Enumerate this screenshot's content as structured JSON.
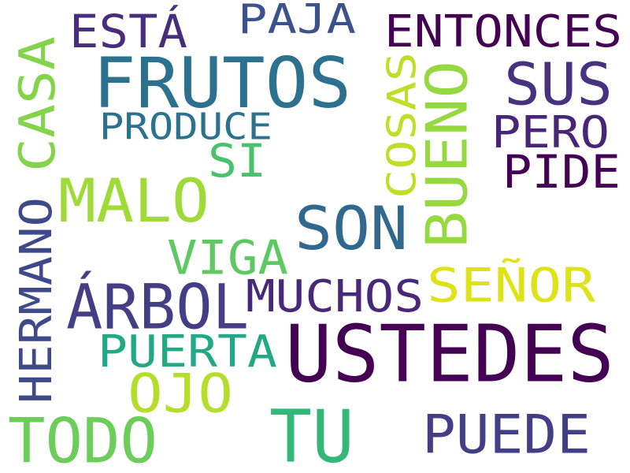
{
  "words": [
    {
      "text": "ESTÁ",
      "color": "#472d7b"
    },
    {
      "text": "PAJA",
      "color": "#3b528b"
    },
    {
      "text": "ENTONCES",
      "color": "#440154"
    },
    {
      "text": "FRUTOS",
      "color": "#2c728e"
    },
    {
      "text": "SUS",
      "color": "#46327e"
    },
    {
      "text": "CASA",
      "color": "#84d44b"
    },
    {
      "text": "COSAS",
      "color": "#bddf26"
    },
    {
      "text": "BUENO",
      "color": "#95d840"
    },
    {
      "text": "PRODUCE",
      "color": "#2c728e"
    },
    {
      "text": "PERO",
      "color": "#482677"
    },
    {
      "text": "SI",
      "color": "#4ac16d"
    },
    {
      "text": "PIDE",
      "color": "#440154"
    },
    {
      "text": "MALO",
      "color": "#a0da39"
    },
    {
      "text": "SON",
      "color": "#31688e"
    },
    {
      "text": "HERMANO",
      "color": "#3e4989"
    },
    {
      "text": "VIGA",
      "color": "#5ec962"
    },
    {
      "text": "SEÑOR",
      "color": "#dde318"
    },
    {
      "text": "ÁRBOL",
      "color": "#433e85"
    },
    {
      "text": "MUCHOS",
      "color": "#482878"
    },
    {
      "text": "PUERTA",
      "color": "#22a884"
    },
    {
      "text": "USTEDES",
      "color": "#440154"
    },
    {
      "text": "OJO",
      "color": "#b5de2b"
    },
    {
      "text": "TODO",
      "color": "#6ccd5a"
    },
    {
      "text": "TU",
      "color": "#35b779"
    },
    {
      "text": "PUEDE",
      "color": "#433e85"
    }
  ]
}
